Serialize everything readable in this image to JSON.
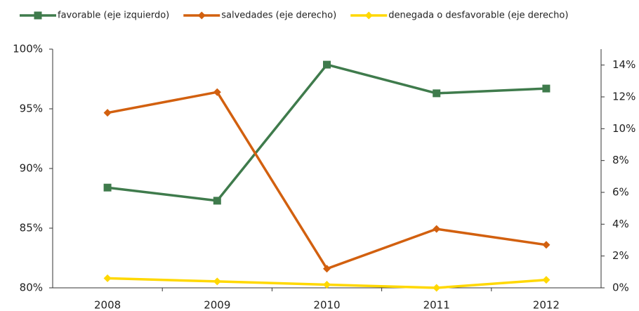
{
  "chart_data": {
    "type": "line",
    "categories": [
      "2008",
      "2009",
      "2010",
      "2011",
      "2012"
    ],
    "series": [
      {
        "name": "favorable (eje izquierdo)",
        "color": "#3f7b4c",
        "marker": "square",
        "values": [
          88.4,
          87.3,
          98.7,
          96.3,
          96.7
        ]
      },
      {
        "name": "salvedades (eje derecho)",
        "color": "#d2600f",
        "marker": "diamond",
        "axis": "y2",
        "values": [
          11.0,
          12.3,
          1.2,
          3.7,
          2.7
        ]
      },
      {
        "name": "denegada o desfavorable (eje derecho)",
        "color": "#ffd800",
        "marker": "diamond",
        "axis": "y2",
        "values": [
          0.6,
          0.4,
          0.2,
          0.0,
          0.5
        ]
      }
    ],
    "ylim": [
      80,
      100
    ],
    "yticks": [
      {
        "value": 80,
        "label": "80%"
      },
      {
        "value": 85,
        "label": "85%"
      },
      {
        "value": 90,
        "label": "90%"
      },
      {
        "value": 95,
        "label": "95%"
      },
      {
        "value": 100,
        "label": "100%"
      }
    ],
    "y2lim": [
      0,
      15
    ],
    "y2ticks": [
      {
        "value": 0,
        "label": "0%"
      },
      {
        "value": 2,
        "label": "2%"
      },
      {
        "value": 4,
        "label": "4%"
      },
      {
        "value": 6,
        "label": "6%"
      },
      {
        "value": 8,
        "label": "8%"
      },
      {
        "value": 10,
        "label": "10%"
      },
      {
        "value": 12,
        "label": "12%"
      },
      {
        "value": 14,
        "label": "14%"
      }
    ],
    "legend": "top",
    "grid": false
  }
}
